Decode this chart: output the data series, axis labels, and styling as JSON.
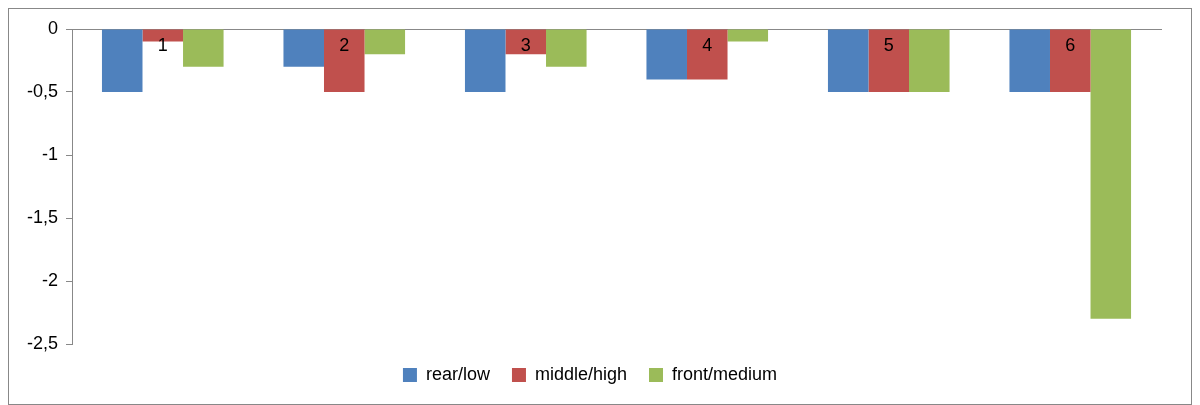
{
  "chart_data": {
    "type": "bar",
    "categories": [
      "1",
      "2",
      "3",
      "4",
      "5",
      "6"
    ],
    "series": [
      {
        "name": "rear/low",
        "color": "#4f81bd",
        "values": [
          -0.5,
          -0.3,
          -0.5,
          -0.4,
          -0.5,
          -0.5
        ]
      },
      {
        "name": "middle/high",
        "color": "#c0504d",
        "values": [
          -0.1,
          -0.5,
          -0.2,
          -0.4,
          -0.5,
          -0.5
        ]
      },
      {
        "name": "front/medium",
        "color": "#9bbb59",
        "values": [
          -0.3,
          -0.2,
          -0.3,
          -0.1,
          -0.5,
          -2.3
        ]
      }
    ],
    "ylim": [
      -2.5,
      0
    ],
    "yticks": [
      0,
      {
        "value": -0.5,
        "label": "-0,5"
      },
      -1,
      {
        "value": -1.5,
        "label": "-1,5"
      },
      -2,
      {
        "value": -2.5,
        "label": "-2,5"
      }
    ],
    "grid": false,
    "legend": "bottom"
  }
}
